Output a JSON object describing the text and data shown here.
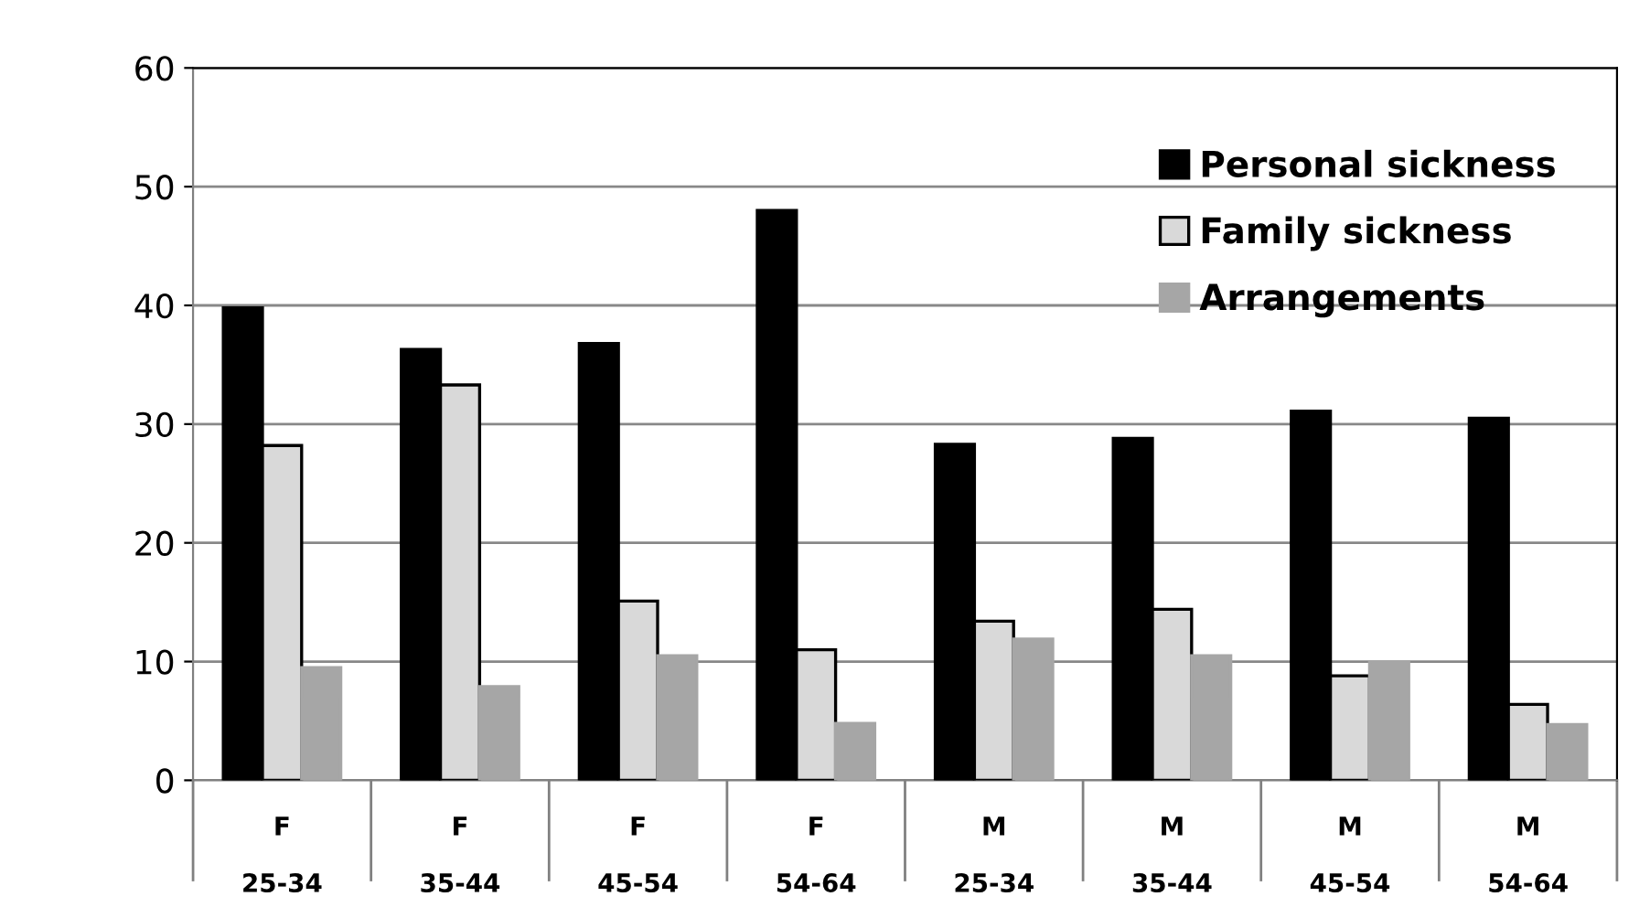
{
  "chart_data": {
    "type": "bar",
    "categories": [
      "F\n\n25-34",
      "F\n\n35-44",
      "F\n\n45-54",
      "F\n\n54-64",
      "M\n\n25-34",
      "M\n\n35-44",
      "M\n\n45-54",
      "M\n\n54-64"
    ],
    "series": [
      {
        "name": "Personal sickness",
        "color": "#000000",
        "values": [
          39.8,
          36.3,
          36.8,
          48,
          28.3,
          28.8,
          31.1,
          30.5
        ]
      },
      {
        "name": "Family sickness",
        "color": "#d9d9d9",
        "values": [
          28.2,
          33.3,
          15.1,
          11,
          13.4,
          14.4,
          8.8,
          6.4
        ]
      },
      {
        "name": "Arrangements",
        "color": "#a6a6a6",
        "values": [
          9.5,
          7.9,
          10.5,
          4.8,
          11.9,
          10.5,
          10,
          4.7
        ]
      }
    ],
    "ylim": [
      0,
      60
    ],
    "yticks": [
      0,
      10,
      20,
      30,
      40,
      50,
      60
    ],
    "grid": "y",
    "legend": "top right"
  }
}
